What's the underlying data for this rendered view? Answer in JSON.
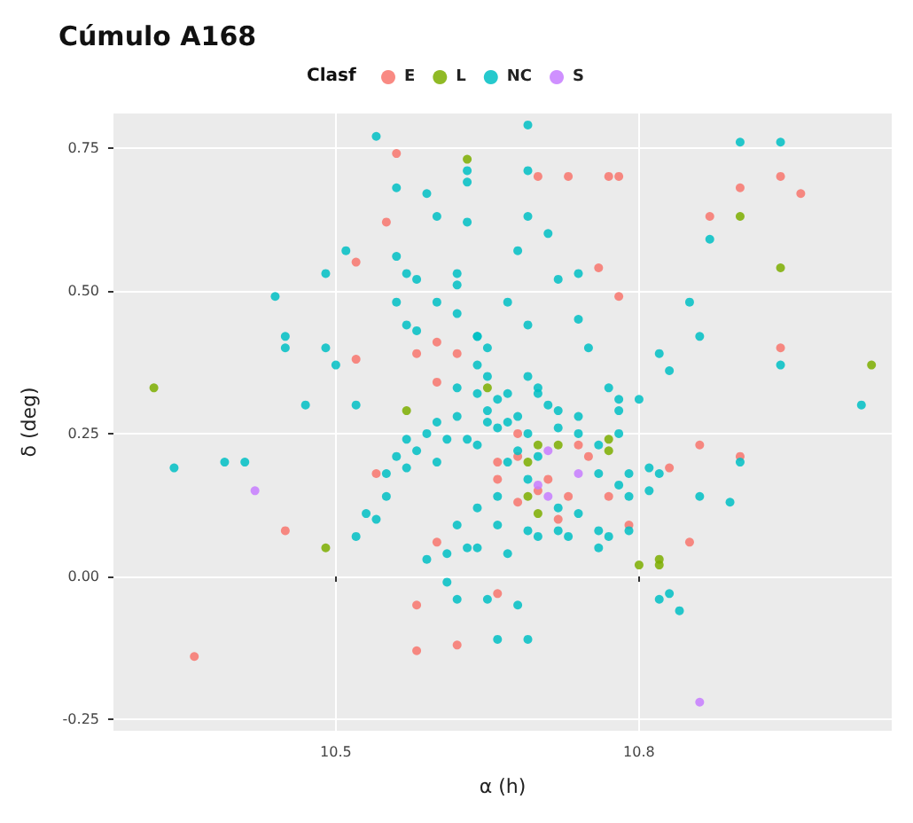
{
  "chart_data": {
    "type": "scatter",
    "title": "Cúmulo A168",
    "xlabel": "α (h)",
    "ylabel": "δ (deg)",
    "legend_title": "Clasf",
    "legend": "top",
    "grid": true,
    "marker": "circle",
    "xlim": [
      10.28,
      11.05
    ],
    "xticks": [
      10.5,
      10.8
    ],
    "ylim": [
      -0.27,
      0.81
    ],
    "yticks": [
      {
        "value": -0.25,
        "label": "-0.25"
      },
      {
        "value": 0,
        "label": "0.00"
      },
      {
        "value": 0.25,
        "label": "0.25"
      },
      {
        "value": 0.5,
        "label": "0.50"
      },
      {
        "value": 0.75,
        "label": "0.75"
      }
    ],
    "series": [
      {
        "name": "E",
        "color": "#f8766d",
        "x": [
          10.56,
          10.55,
          10.52,
          10.52,
          10.6,
          10.58,
          10.54,
          10.45,
          10.36,
          10.58,
          10.62,
          10.66,
          10.6,
          10.62,
          10.7,
          10.77,
          10.78,
          10.76,
          10.78,
          10.73,
          10.83,
          10.79,
          10.87,
          10.9,
          10.94,
          10.96,
          10.9,
          10.94,
          10.66,
          10.66,
          10.68,
          10.7,
          10.71,
          10.73,
          10.68,
          10.72,
          10.74,
          10.75,
          10.77,
          10.86,
          10.58,
          10.85,
          10.68,
          10.6
        ],
        "values": [
          0.74,
          0.62,
          0.55,
          0.38,
          0.41,
          0.39,
          0.18,
          0.08,
          -0.14,
          -0.13,
          -0.12,
          -0.03,
          0.06,
          0.39,
          0.7,
          0.7,
          0.7,
          0.54,
          0.49,
          0.7,
          0.19,
          0.09,
          0.63,
          0.68,
          0.7,
          0.67,
          0.21,
          0.4,
          0.2,
          0.17,
          0.21,
          0.15,
          0.17,
          0.14,
          0.13,
          0.1,
          0.23,
          0.21,
          0.14,
          0.23,
          -0.05,
          0.06,
          0.25,
          0.34
        ]
      },
      {
        "name": "L",
        "color": "#7cae00",
        "x": [
          10.32,
          10.49,
          10.63,
          10.69,
          10.7,
          10.72,
          10.77,
          10.77,
          10.8,
          10.82,
          10.82,
          10.9,
          10.94,
          11.03,
          10.7,
          10.69,
          10.57,
          10.65
        ],
        "values": [
          0.33,
          0.05,
          0.73,
          0.2,
          0.23,
          0.23,
          0.24,
          0.22,
          0.02,
          0.02,
          0.03,
          0.63,
          0.54,
          0.37,
          0.11,
          0.14,
          0.29,
          0.33
        ]
      },
      {
        "name": "NC",
        "color": "#00bfc4",
        "x": [
          10.54,
          10.56,
          10.59,
          10.6,
          10.51,
          10.49,
          10.56,
          10.57,
          10.58,
          10.44,
          10.56,
          10.6,
          10.62,
          10.62,
          10.57,
          10.58,
          10.64,
          10.62,
          10.67,
          10.69,
          10.72,
          10.74,
          10.68,
          10.71,
          10.69,
          10.69,
          10.69,
          10.63,
          10.63,
          10.63,
          10.45,
          10.45,
          10.49,
          10.5,
          10.47,
          10.52,
          10.62,
          10.62,
          10.64,
          10.65,
          10.64,
          10.65,
          10.64,
          10.65,
          10.66,
          10.67,
          10.68,
          10.7,
          10.69,
          10.66,
          10.64,
          10.66,
          10.69,
          10.7,
          10.72,
          10.73,
          10.74,
          10.72,
          10.67,
          10.64,
          10.65,
          10.68,
          10.69,
          10.66,
          10.61,
          10.61,
          10.59,
          10.52,
          10.56,
          10.55,
          10.55,
          10.53,
          10.54,
          10.57,
          10.59,
          10.58,
          10.57,
          10.6,
          10.6,
          10.61,
          10.63,
          10.64,
          10.65,
          10.67,
          10.62,
          10.63,
          10.62,
          10.76,
          10.76,
          10.79,
          10.81,
          10.78,
          10.82,
          10.83,
          10.77,
          10.78,
          10.8,
          10.78,
          10.86,
          10.82,
          10.81,
          10.82,
          10.84,
          10.83,
          10.79,
          10.78,
          10.86,
          10.89,
          10.9,
          10.76,
          10.77,
          10.79,
          10.41,
          10.34,
          10.39,
          10.85,
          10.9,
          10.94,
          10.87,
          10.74,
          10.75,
          10.7,
          10.69,
          10.66,
          10.71,
          10.7,
          10.72,
          10.72,
          10.74,
          10.74,
          10.76,
          10.68,
          10.69,
          10.67,
          11.02,
          10.94
        ],
        "values": [
          0.77,
          0.68,
          0.67,
          0.63,
          0.57,
          0.53,
          0.56,
          0.53,
          0.52,
          0.49,
          0.48,
          0.48,
          0.53,
          0.51,
          0.44,
          0.43,
          0.42,
          0.46,
          0.48,
          0.44,
          0.52,
          0.53,
          0.57,
          0.6,
          0.63,
          0.71,
          0.79,
          0.71,
          0.69,
          0.62,
          0.42,
          0.4,
          0.4,
          0.37,
          0.3,
          0.3,
          0.33,
          0.28,
          0.42,
          0.4,
          0.37,
          0.35,
          0.32,
          0.29,
          0.26,
          0.2,
          0.22,
          0.21,
          0.17,
          0.14,
          0.12,
          0.09,
          0.08,
          0.07,
          0.08,
          0.07,
          0.11,
          0.12,
          0.04,
          0.05,
          -0.04,
          -0.05,
          -0.11,
          -0.11,
          0.04,
          -0.01,
          0.03,
          0.07,
          0.21,
          0.18,
          0.14,
          0.11,
          0.1,
          0.24,
          0.25,
          0.22,
          0.19,
          0.2,
          0.27,
          0.24,
          0.24,
          0.23,
          0.27,
          0.27,
          0.09,
          0.05,
          -0.04,
          0.05,
          0.08,
          0.18,
          0.19,
          0.31,
          0.39,
          0.36,
          0.33,
          0.29,
          0.31,
          0.25,
          0.42,
          0.18,
          0.15,
          -0.04,
          -0.06,
          -0.03,
          0.14,
          0.16,
          0.14,
          0.13,
          0.2,
          0.18,
          0.07,
          0.08,
          0.2,
          0.19,
          0.2,
          0.48,
          0.76,
          0.76,
          0.59,
          0.45,
          0.4,
          0.33,
          0.35,
          0.31,
          0.3,
          0.32,
          0.29,
          0.26,
          0.28,
          0.25,
          0.23,
          0.28,
          0.25,
          0.32,
          0.3,
          0.37
        ]
      },
      {
        "name": "S",
        "color": "#c77cff",
        "x": [
          10.42,
          10.74,
          10.7,
          10.71,
          10.71,
          10.86
        ],
        "values": [
          0.15,
          0.18,
          0.16,
          0.14,
          0.22,
          -0.22
        ]
      }
    ]
  }
}
